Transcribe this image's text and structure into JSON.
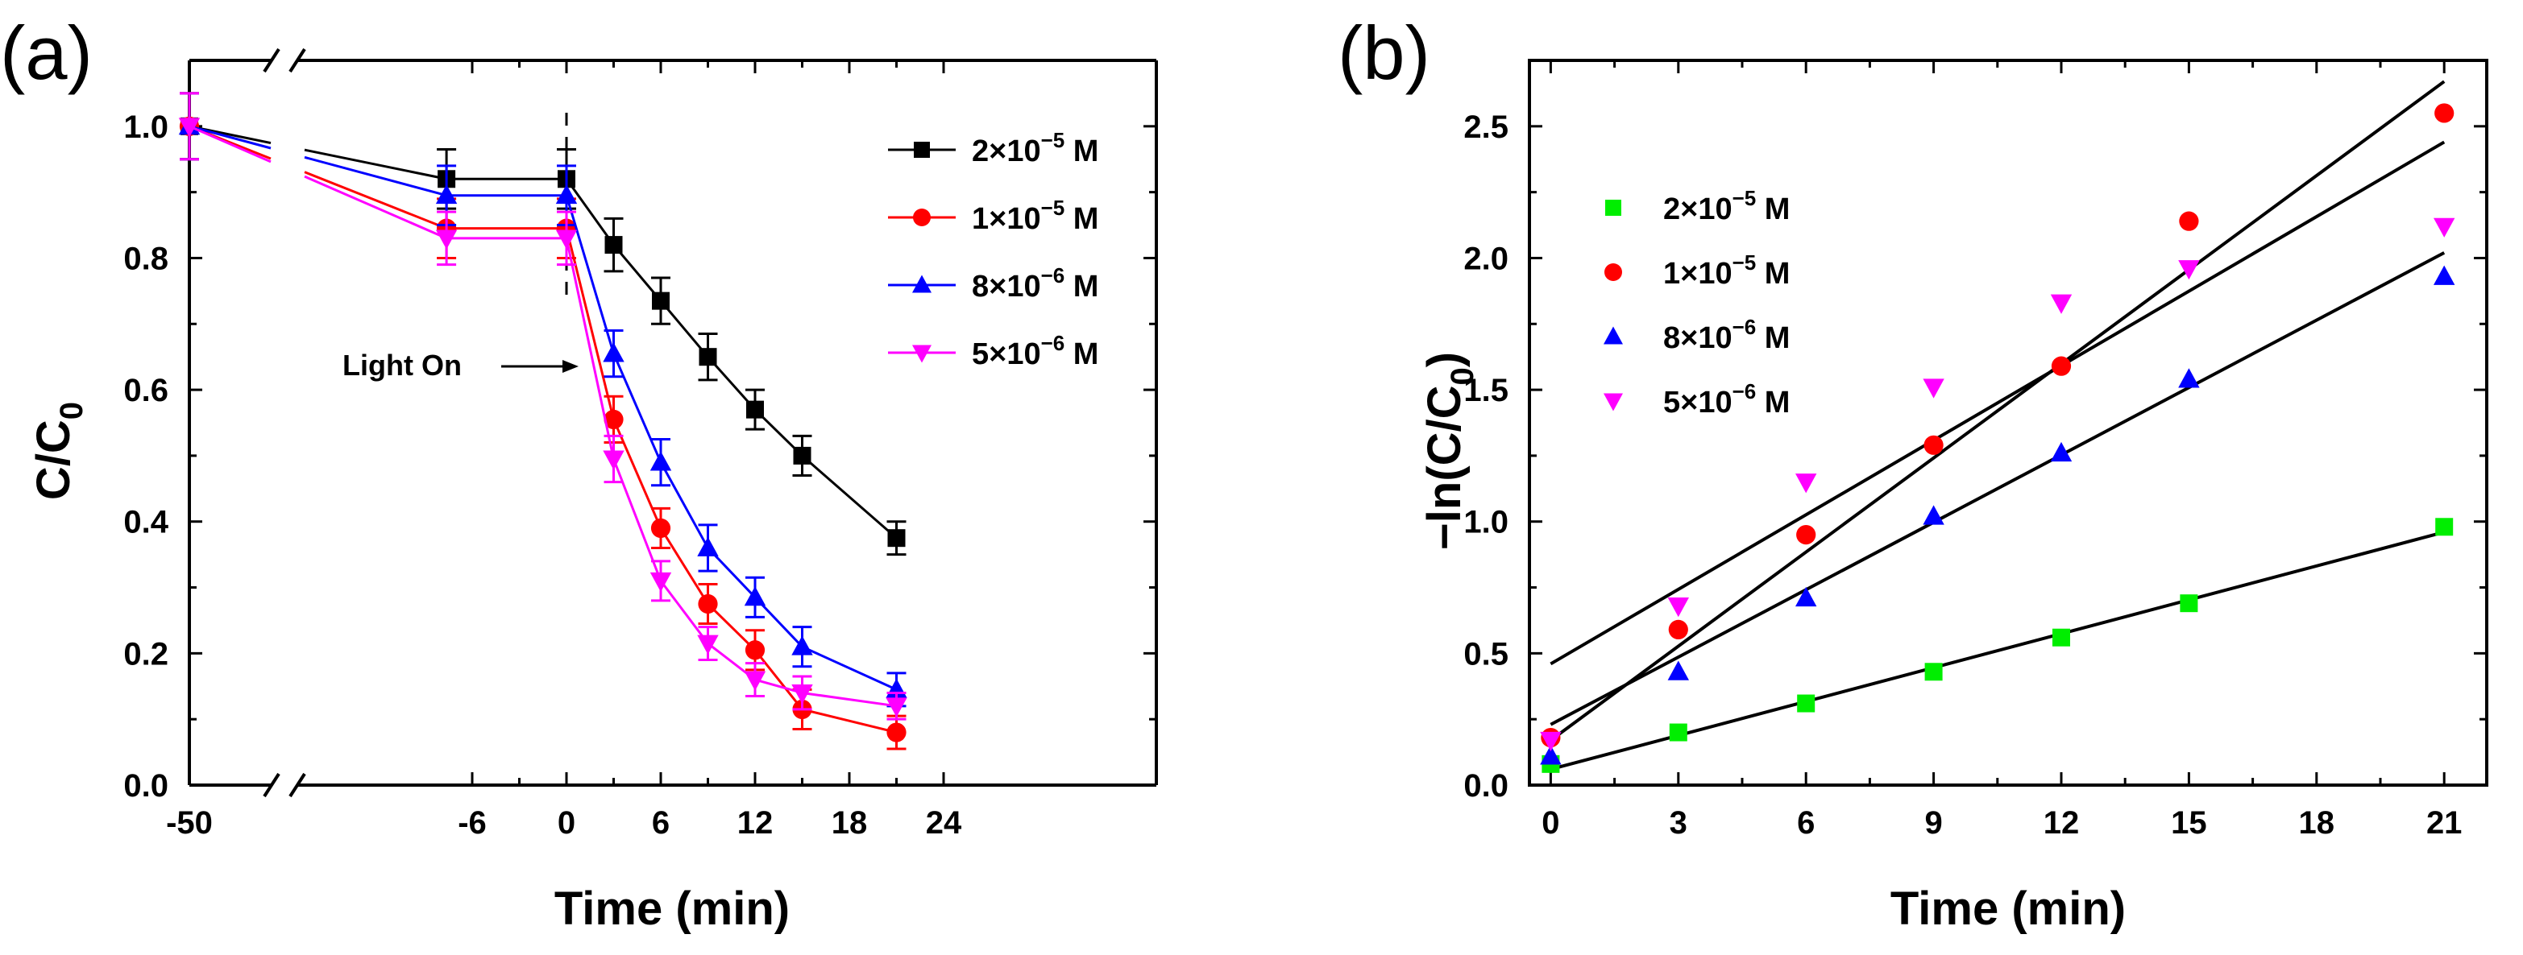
{
  "chart_data": [
    {
      "panel_label": "(a)",
      "type": "line",
      "xlabel": "Time (min)",
      "ylabel_main": "C/C",
      "ylabel_sub": "0",
      "x_ticks": [
        "-50",
        "-6",
        "0",
        "6",
        "12",
        "18",
        "24"
      ],
      "y_ticks": [
        "0.0",
        "0.2",
        "0.4",
        "0.6",
        "0.8",
        "1.0"
      ],
      "ylim": [
        0,
        1.1
      ],
      "x_break": true,
      "annotation": "Light On",
      "series": [
        {
          "label_pre": "2×10",
          "label_exp": "−5",
          "label_post": " M",
          "color": "#000000",
          "marker": "square",
          "x": [
            -50,
            -10,
            0,
            3,
            6,
            9,
            12,
            15,
            21
          ],
          "y": [
            1.0,
            0.92,
            0.92,
            0.82,
            0.735,
            0.65,
            0.57,
            0.5,
            0.375
          ],
          "err": [
            0.05,
            0.045,
            0.045,
            0.04,
            0.035,
            0.035,
            0.03,
            0.03,
            0.025
          ]
        },
        {
          "label_pre": "1×10",
          "label_exp": "−5",
          "label_post": " M",
          "color": "#ff0000",
          "marker": "circle",
          "x": [
            -50,
            -10,
            0,
            3,
            6,
            9,
            12,
            15,
            21
          ],
          "y": [
            1.0,
            0.845,
            0.845,
            0.555,
            0.39,
            0.275,
            0.205,
            0.115,
            0.08
          ],
          "err": [
            0.05,
            0.045,
            0.045,
            0.035,
            0.03,
            0.03,
            0.03,
            0.03,
            0.025
          ]
        },
        {
          "label_pre": "8×10",
          "label_exp": "−6",
          "label_post": " M",
          "color": "#0000ff",
          "marker": "triangle-up",
          "x": [
            -50,
            -10,
            0,
            3,
            6,
            9,
            12,
            15,
            21
          ],
          "y": [
            1.0,
            0.895,
            0.895,
            0.655,
            0.49,
            0.36,
            0.285,
            0.21,
            0.145
          ],
          "err": [
            0.05,
            0.045,
            0.045,
            0.035,
            0.035,
            0.035,
            0.03,
            0.03,
            0.025
          ]
        },
        {
          "label_pre": "5×10",
          "label_exp": "−6",
          "label_post": " M",
          "color": "#ff00ff",
          "marker": "triangle-down",
          "x": [
            -50,
            -10,
            0,
            3,
            6,
            9,
            12,
            15,
            21
          ],
          "y": [
            1.0,
            0.83,
            0.83,
            0.495,
            0.31,
            0.215,
            0.16,
            0.14,
            0.12
          ],
          "err": [
            0.05,
            0.04,
            0.04,
            0.035,
            0.03,
            0.025,
            0.025,
            0.025,
            0.02
          ]
        }
      ]
    },
    {
      "panel_label": "(b)",
      "type": "scatter",
      "xlabel": "Time (min)",
      "ylabel_main": "−ln(C/C",
      "ylabel_sub": "0",
      "ylabel_end": ")",
      "x_ticks": [
        "0",
        "3",
        "6",
        "9",
        "12",
        "15",
        "18",
        "21"
      ],
      "y_ticks": [
        "0.0",
        "0.5",
        "1.0",
        "1.5",
        "2.0",
        "2.5"
      ],
      "xlim": [
        -0.5,
        22
      ],
      "ylim": [
        0,
        2.75
      ],
      "series": [
        {
          "label_pre": "2×10",
          "label_exp": "−5",
          "label_post": " M",
          "color": "#00ee00",
          "marker": "square",
          "x": [
            0,
            3,
            6,
            9,
            12,
            15,
            21
          ],
          "y": [
            0.08,
            0.2,
            0.31,
            0.43,
            0.56,
            0.69,
            0.98
          ],
          "fit": [
            0.06,
            0.96
          ]
        },
        {
          "label_pre": "1×10",
          "label_exp": "−5",
          "label_post": " M",
          "color": "#ff0000",
          "marker": "circle",
          "x": [
            0,
            3,
            6,
            9,
            12,
            15,
            21
          ],
          "y": [
            0.18,
            0.59,
            0.95,
            1.29,
            1.59,
            2.14,
            2.55
          ],
          "fit": [
            0.17,
            2.67
          ]
        },
        {
          "label_pre": "8×10",
          "label_exp": "−6",
          "label_post": " M",
          "color": "#0000ff",
          "marker": "triangle-up",
          "x": [
            0,
            3,
            6,
            9,
            12,
            15,
            21
          ],
          "y": [
            0.11,
            0.43,
            0.71,
            1.02,
            1.26,
            1.54,
            1.93
          ],
          "fit": [
            0.23,
            2.02
          ]
        },
        {
          "label_pre": "5×10",
          "label_exp": "−6",
          "label_post": " M",
          "color": "#ff00ff",
          "marker": "triangle-down",
          "x": [
            0,
            3,
            6,
            9,
            12,
            15,
            21
          ],
          "y": [
            0.17,
            0.68,
            1.15,
            1.51,
            1.83,
            1.96,
            2.12
          ],
          "fit": [
            0.46,
            2.44
          ]
        }
      ]
    }
  ]
}
